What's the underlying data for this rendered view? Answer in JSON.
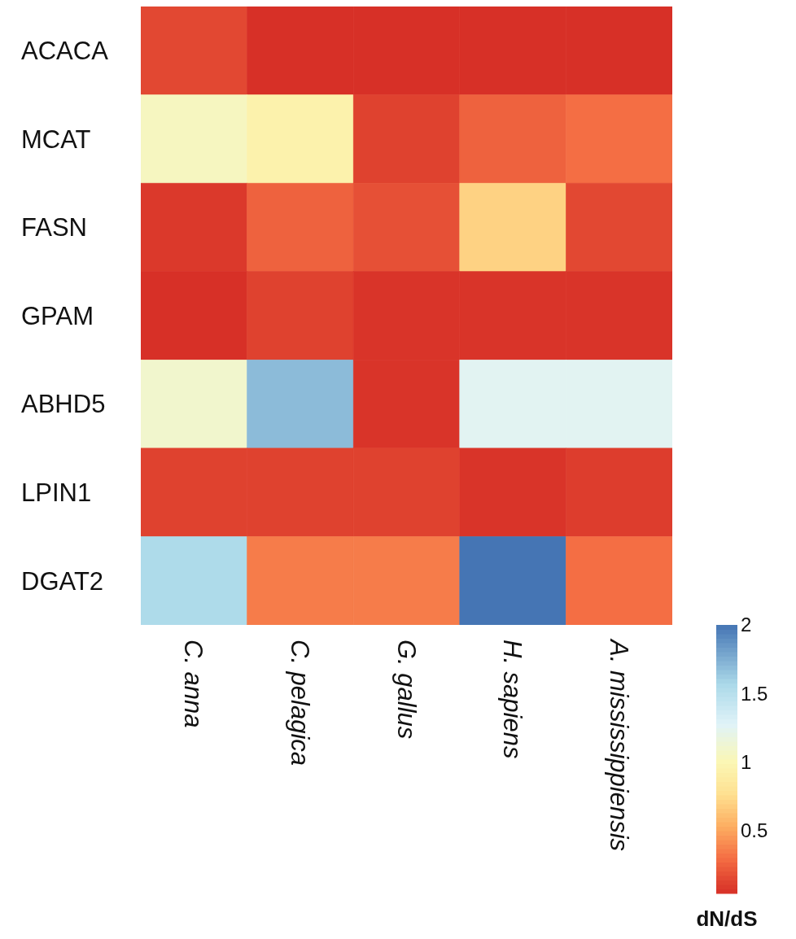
{
  "chart_data": {
    "type": "heatmap",
    "categories": [
      "C. anna",
      "C. pelagica",
      "G. gallus",
      "H. sapiens",
      "A. mississippiensis"
    ],
    "y_categories": [
      "ACACA",
      "MCAT",
      "FASN",
      "GPAM",
      "ABHD5",
      "LPIN1",
      "DGAT2"
    ],
    "cells": [
      [
        0.15,
        0.04,
        0.04,
        0.04,
        0.04
      ],
      [
        1.05,
        0.95,
        0.12,
        0.25,
        0.3
      ],
      [
        0.08,
        0.25,
        0.18,
        0.7,
        0.15
      ],
      [
        0.04,
        0.12,
        0.06,
        0.06,
        0.06
      ],
      [
        1.1,
        1.7,
        0.06,
        1.25,
        1.25
      ],
      [
        0.12,
        0.12,
        0.12,
        0.06,
        0.1
      ],
      [
        1.55,
        0.35,
        0.35,
        2.0,
        0.3
      ]
    ],
    "clim": [
      0.04,
      2
    ],
    "cticks": [
      0.5,
      1,
      1.5,
      2
    ],
    "clabel": "dN/dS"
  }
}
